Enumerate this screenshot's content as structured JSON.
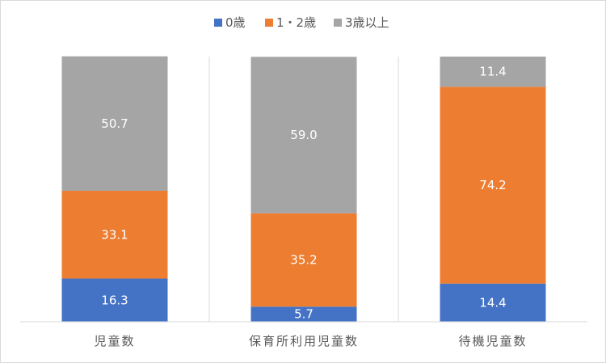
{
  "chart_data": {
    "type": "bar",
    "stacked": true,
    "percent_stacked": true,
    "categories": [
      "児童数",
      "保育所利用児童数",
      "待機児童数"
    ],
    "series": [
      {
        "name": "0歳",
        "values": [
          16.3,
          5.7,
          14.4
        ],
        "color": "#4472c4"
      },
      {
        "name": "1・2歳",
        "values": [
          33.1,
          35.2,
          74.2
        ],
        "color": "#ed7d31"
      },
      {
        "name": "3歳以上",
        "values": [
          50.7,
          59.0,
          11.4
        ],
        "color": "#a5a5a5"
      }
    ],
    "data_labels": [
      [
        "16.3",
        "5.7",
        "14.4"
      ],
      [
        "33.1",
        "35.2",
        "74.2"
      ],
      [
        "50.7",
        "59.0",
        "11.4"
      ]
    ],
    "ylim": [
      0,
      100
    ],
    "legend_position": "top",
    "grid": false,
    "category_separators": true,
    "colors": {
      "axis": "#d9d9d9",
      "text": "#595959",
      "label_text": "#ffffff"
    }
  }
}
